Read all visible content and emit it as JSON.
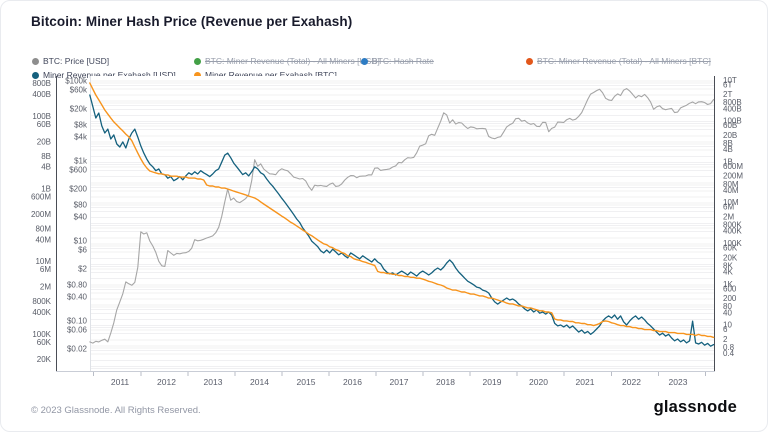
{
  "header": {
    "title": "Bitcoin: Miner Hash Price (Revenue per Exahash)"
  },
  "legend": {
    "rows": [
      [
        {
          "label": "BTC: Price [USD]",
          "color": "#8e8e8e",
          "disabled": false
        },
        {
          "label": "BTC: Miner Revenue (Total) - All Miners [USD]",
          "color": "#43a047",
          "disabled": true
        },
        {
          "label": "BTC: Hash Rate",
          "color": "#2e7cc3",
          "disabled": true
        },
        {
          "label": "BTC: Miner Revenue (Total) - All Miners [BTC]",
          "color": "#e2571b",
          "disabled": true
        }
      ],
      [
        {
          "label": "Miner Revenue per Exahash [USD]",
          "color": "#15617e",
          "disabled": false
        },
        {
          "label": "Miner Revenue per Exahash [BTC]",
          "color": "#f7941d",
          "disabled": false
        }
      ]
    ]
  },
  "footer": {
    "copyright": "© 2023 Glassnode. All Rights Reserved.",
    "logo": "glassnode"
  },
  "chart_data": {
    "type": "line",
    "title": "Bitcoin: Miner Hash Price (Revenue per Exahash)",
    "x_ticks": [
      2011,
      2012,
      2013,
      2014,
      2015,
      2016,
      2017,
      2018,
      2019,
      2020,
      2021,
      2022,
      2023
    ],
    "grid": "log-minor-horizontal",
    "axes": {
      "left_outer": {
        "series": "Miner Revenue per Exahash [USD]",
        "ticks": [
          {
            "v": 800000000000.0,
            "label": "800B"
          },
          {
            "v": 400000000000.0,
            "label": "400B"
          },
          {
            "v": 100000000000.0,
            "label": "100B"
          },
          {
            "v": 60000000000.0,
            "label": "60B"
          },
          {
            "v": 20000000000.0,
            "label": "20B"
          },
          {
            "v": 8000000000.0,
            "label": "8B"
          },
          {
            "v": 4000000000.0,
            "label": "4B"
          },
          {
            "v": 1000000000.0,
            "label": "1B"
          },
          {
            "v": 600000000.0,
            "label": "600M"
          },
          {
            "v": 200000000.0,
            "label": "200M"
          },
          {
            "v": 80000000.0,
            "label": "80M"
          },
          {
            "v": 40000000.0,
            "label": "40M"
          },
          {
            "v": 10000000.0,
            "label": "10M"
          },
          {
            "v": 6000000.0,
            "label": "6M"
          },
          {
            "v": 2000000.0,
            "label": "2M"
          },
          {
            "v": 800000.0,
            "label": "800K"
          },
          {
            "v": 400000.0,
            "label": "400K"
          },
          {
            "v": 100000.0,
            "label": "100K"
          },
          {
            "v": 60000.0,
            "label": "60K"
          },
          {
            "v": 20000.0,
            "label": "20K"
          }
        ]
      },
      "left_inner": {
        "series": "BTC: Price [USD]",
        "ticks": [
          {
            "v": 100000,
            "label": "$100k"
          },
          {
            "v": 60000,
            "label": "$60k"
          },
          {
            "v": 20000,
            "label": "$20k"
          },
          {
            "v": 8000,
            "label": "$8k"
          },
          {
            "v": 4000,
            "label": "$4k"
          },
          {
            "v": 1000,
            "label": "$1k"
          },
          {
            "v": 600,
            "label": "$600"
          },
          {
            "v": 200,
            "label": "$200"
          },
          {
            "v": 80,
            "label": "$80"
          },
          {
            "v": 40,
            "label": "$40"
          },
          {
            "v": 10,
            "label": "$10"
          },
          {
            "v": 6,
            "label": "$6"
          },
          {
            "v": 2,
            "label": "$2"
          },
          {
            "v": 0.8,
            "label": "$0.80"
          },
          {
            "v": 0.4,
            "label": "$0.40"
          },
          {
            "v": 0.1,
            "label": "$0.10"
          },
          {
            "v": 0.06,
            "label": "$0.06"
          },
          {
            "v": 0.02,
            "label": "$0.02"
          }
        ]
      },
      "right": {
        "series": "Miner Revenue per Exahash [BTC]",
        "ticks": [
          {
            "v": 10000000000000.0,
            "label": "10T"
          },
          {
            "v": 6000000000000.0,
            "label": "6T"
          },
          {
            "v": 2000000000000.0,
            "label": "2T"
          },
          {
            "v": 800000000000.0,
            "label": "800B"
          },
          {
            "v": 400000000000.0,
            "label": "400B"
          },
          {
            "v": 100000000000.0,
            "label": "100B"
          },
          {
            "v": 60000000000.0,
            "label": "60B"
          },
          {
            "v": 20000000000.0,
            "label": "20B"
          },
          {
            "v": 8000000000.0,
            "label": "8B"
          },
          {
            "v": 4000000000.0,
            "label": "4B"
          },
          {
            "v": 1000000000.0,
            "label": "1B"
          },
          {
            "v": 600000000.0,
            "label": "600M"
          },
          {
            "v": 200000000.0,
            "label": "200M"
          },
          {
            "v": 80000000.0,
            "label": "80M"
          },
          {
            "v": 40000000.0,
            "label": "40M"
          },
          {
            "v": 10000000.0,
            "label": "10M"
          },
          {
            "v": 6000000.0,
            "label": "6M"
          },
          {
            "v": 2000000.0,
            "label": "2M"
          },
          {
            "v": 800000.0,
            "label": "800K"
          },
          {
            "v": 400000.0,
            "label": "400K"
          },
          {
            "v": 100000.0,
            "label": "100K"
          },
          {
            "v": 60000.0,
            "label": "60K"
          },
          {
            "v": 20000.0,
            "label": "20K"
          },
          {
            "v": 8000.0,
            "label": "8K"
          },
          {
            "v": 4000.0,
            "label": "4K"
          },
          {
            "v": 1000.0,
            "label": "1K"
          },
          {
            "v": 600,
            "label": "600"
          },
          {
            "v": 200,
            "label": "200"
          },
          {
            "v": 80,
            "label": "80"
          },
          {
            "v": 40,
            "label": "40"
          },
          {
            "v": 10,
            "label": "10"
          },
          {
            "v": 6,
            "label": "6"
          },
          {
            "v": 2,
            "label": "2"
          },
          {
            "v": 0.8,
            "label": "0.8"
          },
          {
            "v": 0.4,
            "label": "0.4"
          }
        ]
      }
    },
    "series": [
      {
        "name": "BTC: Price [USD]",
        "color": "#a6a6a6",
        "axis": "left_inner",
        "width": 1.1,
        "x_start": 2010.35,
        "x_step": 0.0645,
        "values": [
          0.03,
          0.028,
          0.031,
          0.03,
          0.033,
          0.035,
          0.03,
          0.05,
          0.09,
          0.19,
          0.3,
          0.48,
          0.95,
          0.85,
          0.78,
          0.92,
          2.2,
          17,
          15,
          16,
          10,
          7.5,
          5.2,
          3.1,
          2.4,
          2.3,
          5.8,
          5.0,
          4.4,
          4.9,
          4.8,
          5.0,
          5.1,
          5.5,
          6.6,
          10.8,
          10.1,
          10.4,
          11.0,
          11.9,
          12.6,
          13.4,
          16,
          22,
          41,
          93,
          200,
          105,
          118,
          97,
          91,
          102,
          115,
          145,
          320,
          1080,
          735,
          850,
          630,
          545,
          480,
          470,
          455,
          570,
          640,
          595,
          570,
          480,
          395,
          375,
          355,
          365,
          318,
          230,
          185,
          248,
          240,
          245,
          236,
          232,
          263,
          282,
          232,
          237,
          268,
          333,
          392,
          432,
          428,
          382,
          414,
          420,
          423,
          452,
          449,
          660,
          672,
          582,
          602,
          618,
          636,
          708,
          756,
          920,
          900,
          1070,
          1210,
          1190,
          1230,
          1600,
          2350,
          2500,
          2700,
          4300,
          4650,
          4400,
          6600,
          9900,
          16000,
          14200,
          8900,
          10700,
          8400,
          9100,
          8900,
          7500,
          6500,
          7100,
          6900,
          6400,
          6500,
          6550,
          6400,
          4100,
          3750,
          3620,
          3880,
          4050,
          5350,
          7100,
          8050,
          8750,
          11400,
          11700,
          9900,
          10350,
          8900,
          8250,
          8650,
          7350,
          7250,
          9300,
          9200,
          5400,
          6550,
          7050,
          9400,
          9350,
          9150,
          10800,
          11600,
          10550,
          11100,
          13050,
          16200,
          23500,
          34500,
          47000,
          51500,
          57500,
          62000,
          51000,
          37000,
          33600,
          32500,
          41500,
          47500,
          43500,
          59000,
          64500,
          56500,
          46500,
          37800,
          43500,
          40500,
          46300,
          38500,
          29700,
          19600,
          22500,
          24100,
          20300,
          19200,
          20000,
          20700,
          16200,
          16700,
          21300,
          23100,
          24900,
          27900,
          29800,
          27000,
          30100,
          30400,
          29000,
          25900,
          27200,
          34400
        ]
      },
      {
        "name": "Miner Revenue per Exahash [USD]",
        "color": "#15617e",
        "axis": "left_outer",
        "width": 1.3,
        "x_start": 2010.35,
        "x_step": 0.0645,
        "values": [
          390000000000.0,
          190000000000.0,
          91000000000.0,
          125000000000.0,
          55000000000.0,
          35000000000.0,
          45000000000.0,
          24000000000.0,
          31000000000.0,
          17500000000.0,
          14400000000.0,
          20000000000.0,
          13500000000.0,
          24000000000.0,
          35000000000.0,
          45000000000.0,
          27000000000.0,
          15500000000.0,
          9800000000.0,
          6700000000.0,
          4900000000.0,
          4100000000.0,
          3200000000.0,
          3600000000.0,
          2600000000.0,
          2500000000.0,
          2000000000.0,
          2200000000.0,
          1700000000.0,
          1900000000.0,
          2200000000.0,
          1800000000.0,
          2300000000.0,
          2800000000.0,
          2500000000.0,
          3000000000.0,
          2600000000.0,
          3200000000.0,
          2800000000.0,
          2500000000.0,
          2200000000.0,
          2600000000.0,
          3200000000.0,
          3600000000.0,
          5500000000.0,
          8600000000.0,
          9800000000.0,
          7300000000.0,
          5200000000.0,
          4100000000.0,
          3200000000.0,
          2500000000.0,
          2800000000.0,
          2300000000.0,
          3000000000.0,
          4100000000.0,
          3600000000.0,
          2800000000.0,
          2500000000.0,
          1900000000.0,
          1480000000.0,
          1200000000.0,
          940000000.0,
          730000000.0,
          560000000.0,
          440000000.0,
          340000000.0,
          260000000.0,
          200000000.0,
          150000000.0,
          120000000.0,
          85000000.0,
          66000000.0,
          51000000.0,
          37000000.0,
          31000000.0,
          26000000.0,
          20000000.0,
          17500000.0,
          21000000.0,
          17500000.0,
          22000000.0,
          18600000.0,
          15500000.0,
          17500000.0,
          14500000.0,
          12700000.0,
          17500000.0,
          15500000.0,
          13500000.0,
          12000000.0,
          14500000.0,
          12700000.0,
          11200000.0,
          9800000.0,
          12000000.0,
          9800000.0,
          8700000.0,
          6300000.0,
          5200000.0,
          4600000.0,
          4900000.0,
          4300000.0,
          4900000.0,
          5500000.0,
          4900000.0,
          4300000.0,
          5200000.0,
          4600000.0,
          4000000.0,
          4900000.0,
          5500000.0,
          4900000.0,
          4300000.0,
          4900000.0,
          5900000.0,
          6700000.0,
          5900000.0,
          7100000.0,
          9200000.0,
          11200000.0,
          9200000.0,
          6700000.0,
          5200000.0,
          4300000.0,
          3500000.0,
          2900000.0,
          2600000.0,
          2300000.0,
          2000000.0,
          1900000.0,
          1650000.0,
          1550000.0,
          1370000.0,
          1000000.0,
          780000.0,
          680000.0,
          780000.0,
          880000.0,
          1000000.0,
          880000.0,
          940000.0,
          830000.0,
          680000.0,
          600000.0,
          500000.0,
          440000.0,
          500000.0,
          410000.0,
          470000.0,
          380000.0,
          410000.0,
          360000.0,
          410000.0,
          340000.0,
          200000.0,
          170000.0,
          180000.0,
          160000.0,
          180000.0,
          150000.0,
          170000.0,
          140000.0,
          115000.0,
          130000.0,
          107000.0,
          120000.0,
          100000.0,
          115000.0,
          140000.0,
          170000.0,
          230000.0,
          280000.0,
          320000.0,
          280000.0,
          340000.0,
          260000.0,
          320000.0,
          220000.0,
          180000.0,
          230000.0,
          280000.0,
          320000.0,
          260000.0,
          300000.0,
          250000.0,
          200000.0,
          170000.0,
          140000.0,
          115000.0,
          95000.0,
          107000.0,
          89000.0,
          100000.0,
          79000.0,
          66000.0,
          74000.0,
          62000.0,
          70000.0,
          58000.0,
          66000.0,
          230000.0,
          58000.0,
          54000.0,
          60000.0,
          50000.0,
          56000.0,
          47000.0,
          52000.0
        ]
      },
      {
        "name": "Miner Revenue per Exahash [BTC]",
        "color": "#f7941d",
        "axis": "right",
        "width": 1.4,
        "x_start": 2010.35,
        "x_step": 0.0645,
        "values": [
          7400000000000.0,
          3700000000000.0,
          1900000000000.0,
          1100000000000.0,
          620000000000.0,
          350000000000.0,
          220000000000.0,
          140000000000.0,
          91000000000.0,
          65000000000.0,
          46000000000.0,
          33000000000.0,
          23000000000.0,
          17000000000.0,
          11000000000.0,
          5400000000.0,
          2700000000.0,
          1400000000.0,
          790000000.0,
          500000000.0,
          360000000.0,
          320000000.0,
          290000000.0,
          260000000.0,
          260000000.0,
          230000000.0,
          230000000.0,
          200000000.0,
          200000000.0,
          200000000.0,
          180000000.0,
          180000000.0,
          180000000.0,
          160000000.0,
          160000000.0,
          160000000.0,
          145000000.0,
          145000000.0,
          130000000.0,
          74000000.0,
          66000000.0,
          66000000.0,
          59000000.0,
          59000000.0,
          52000000.0,
          52000000.0,
          47000000.0,
          42000000.0,
          37000000.0,
          33000000.0,
          30000000.0,
          27000000.0,
          24000000.0,
          21000000.0,
          19000000.0,
          17000000.0,
          14000000.0,
          11000000.0,
          8600000.0,
          6900000.0,
          5500000.0,
          4400000.0,
          3500000.0,
          2800000.0,
          2200000.0,
          1800000.0,
          1400000.0,
          1100000.0,
          910000.0,
          730000.0,
          580000.0,
          460000.0,
          370000.0,
          290000.0,
          240000.0,
          190000.0,
          150000.0,
          120000.0,
          97000.0,
          87000.0,
          69000.0,
          62000.0,
          50000.0,
          45000.0,
          36000.0,
          32000.0,
          25000.0,
          23000.0,
          18000.0,
          16000.0,
          15000.0,
          13000.0,
          12000.0,
          10500.0,
          9400.0,
          8400.0,
          4300.0,
          3800.0,
          3800.0,
          3400.0,
          3400.0,
          3100.0,
          3100.0,
          2700.0,
          2700.0,
          2400.0,
          2400.0,
          2200.0,
          2200.0,
          2000.0,
          2000.0,
          1800.0,
          1600.0,
          1400.0,
          1300.0,
          1150.0,
          1000.0,
          920,
          820,
          660,
          590,
          520,
          520,
          470,
          420,
          420,
          370,
          330,
          330,
          300,
          270,
          270,
          240,
          210,
          210,
          190,
          170,
          150,
          140,
          120,
          110,
          110,
          98,
          87,
          87,
          78,
          70,
          70,
          62,
          56,
          50,
          50,
          44,
          44,
          40,
          20,
          18,
          18,
          16,
          16,
          15,
          15,
          13,
          13,
          12,
          12,
          10.5,
          10.5,
          9.4,
          10.5,
          12,
          15,
          16,
          15,
          13,
          12,
          10.5,
          9.4,
          9.4,
          8.4,
          8.4,
          7.5,
          7.5,
          6.7,
          6.7,
          6.0,
          6.0,
          6.0,
          5.4,
          5.4,
          4.8,
          4.8,
          4.8,
          4.3,
          4.3,
          4.3,
          3.9,
          3.9,
          3.9,
          3.5,
          3.5,
          3.5,
          3.1,
          3.5,
          3.1,
          3.1,
          2.8,
          2.8,
          2.5
        ]
      }
    ]
  }
}
